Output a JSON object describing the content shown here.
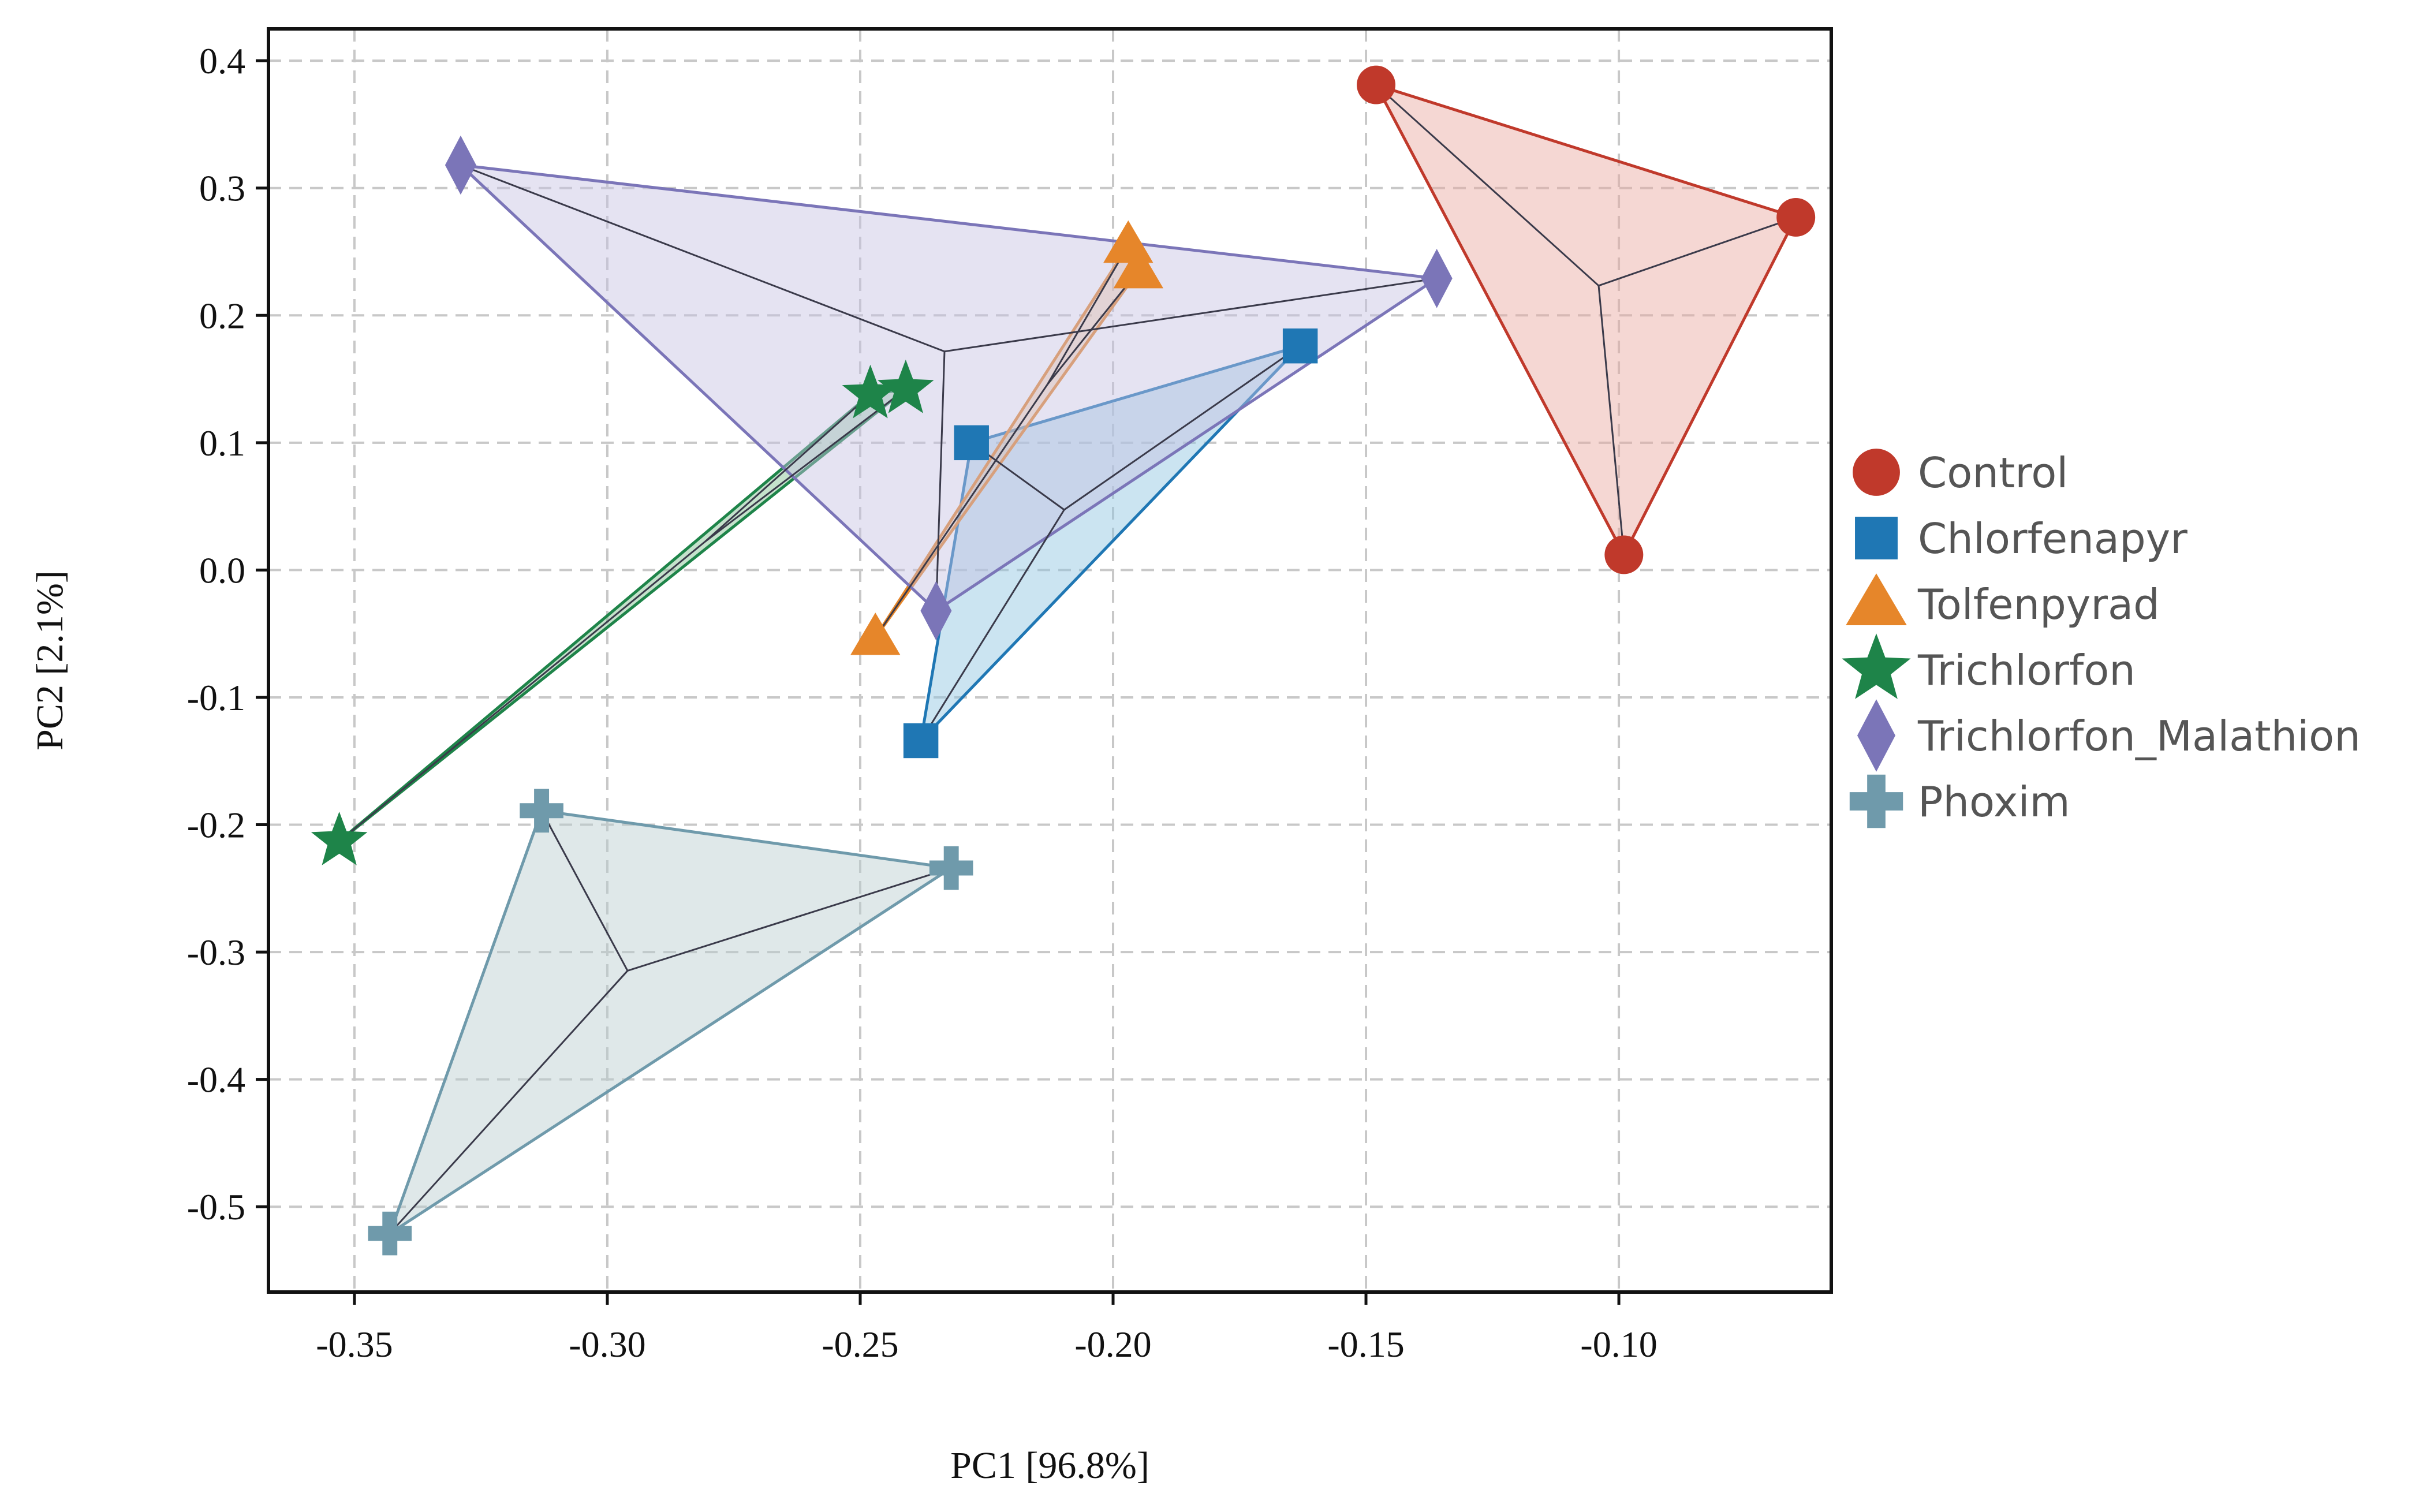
{
  "chart_data": {
    "type": "scatter",
    "title": "",
    "xlabel": "PC1 [96.8%]",
    "ylabel": "PC2 [2.1%]",
    "xlim": [
      -0.367,
      -0.058
    ],
    "ylim": [
      -0.567,
      0.425
    ],
    "xticks": [
      -0.35,
      -0.3,
      -0.25,
      -0.2,
      -0.15,
      -0.1
    ],
    "xtick_labels": [
      "-0.35",
      "-0.30",
      "-0.25",
      "-0.20",
      "-0.15",
      "-0.10"
    ],
    "yticks": [
      0.4,
      0.3,
      0.2,
      0.1,
      0.0,
      -0.1,
      -0.2,
      -0.3,
      -0.4,
      -0.5
    ],
    "ytick_labels": [
      "0.4",
      "0.3",
      "0.2",
      "0.1",
      "0.0",
      "-0.1",
      "-0.2",
      "-0.3",
      "-0.4",
      "-0.5"
    ],
    "grid": true,
    "legend_position": "right",
    "series": [
      {
        "name": "Control",
        "marker": "circle",
        "color": "#c0392b",
        "fill": "#e8a79e",
        "points": [
          [
            -0.148,
            0.381
          ],
          [
            -0.065,
            0.277
          ],
          [
            -0.099,
            0.012
          ]
        ]
      },
      {
        "name": "Chlorfenapyr",
        "marker": "square",
        "color": "#1f77b4",
        "fill": "#8cc4e0",
        "points": [
          [
            -0.228,
            0.1
          ],
          [
            -0.163,
            0.176
          ],
          [
            -0.238,
            -0.134
          ]
        ]
      },
      {
        "name": "Tolfenpyrad",
        "marker": "triangle",
        "color": "#e6862a",
        "fill": "#f2be8a",
        "points": [
          [
            -0.197,
            0.255
          ],
          [
            -0.195,
            0.235
          ],
          [
            -0.247,
            -0.053
          ]
        ]
      },
      {
        "name": "Trichlorfon",
        "marker": "star",
        "color": "#1e8449",
        "fill": "#7fbf8e",
        "points": [
          [
            -0.248,
            0.138
          ],
          [
            -0.241,
            0.142
          ],
          [
            -0.353,
            -0.213
          ]
        ]
      },
      {
        "name": "Trichlorfon_Malathion",
        "marker": "diamond",
        "color": "#7b75b8",
        "fill": "#c5c2e2",
        "points": [
          [
            -0.329,
            0.318
          ],
          [
            -0.136,
            0.229
          ],
          [
            -0.235,
            -0.032
          ]
        ]
      },
      {
        "name": "Phoxim",
        "marker": "plus",
        "color": "#6f9aab",
        "fill": "#b9cbcf",
        "points": [
          [
            -0.313,
            -0.189
          ],
          [
            -0.232,
            -0.234
          ],
          [
            -0.343,
            -0.521
          ]
        ]
      }
    ]
  }
}
